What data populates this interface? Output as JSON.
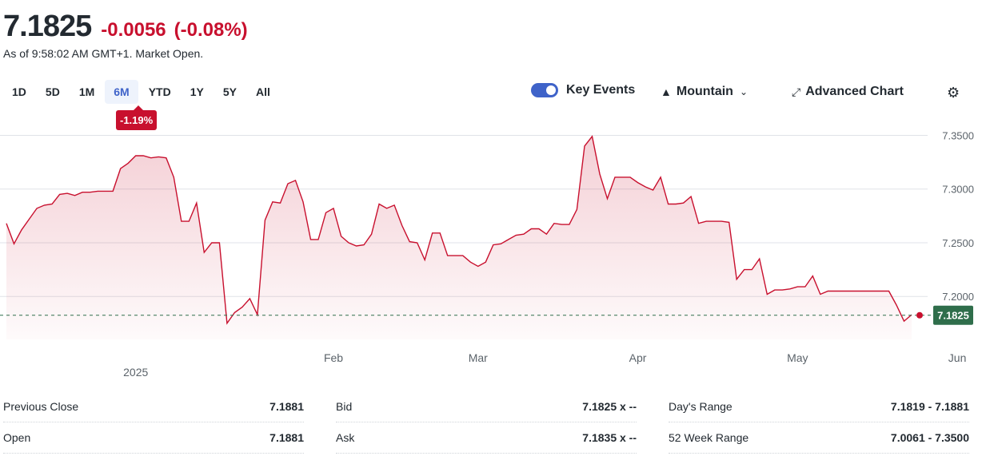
{
  "quote": {
    "price": "7.1825",
    "change": "-0.0056",
    "change_pct": "(-0.08%)",
    "as_of": "As of 9:58:02 AM GMT+1. Market Open."
  },
  "ranges": [
    "1D",
    "5D",
    "1M",
    "6M",
    "YTD",
    "1Y",
    "5Y",
    "All"
  ],
  "active_range": "6M",
  "range_change": "-1.19%",
  "tools": {
    "key_events": "Key Events",
    "chart_type": "Mountain",
    "advanced": "Advanced Chart"
  },
  "colors": {
    "line": "#c8102e",
    "accent": "#3f63c9",
    "price_tag": "#2f6e4b"
  },
  "chart_data": {
    "type": "area",
    "title": "",
    "xlabel": "",
    "ylabel": "",
    "ylim": [
      7.16,
      7.36
    ],
    "y_ticks": [
      "7.3500",
      "7.3000",
      "7.2500",
      "7.2000"
    ],
    "y_tick_values": [
      7.35,
      7.3,
      7.25,
      7.2
    ],
    "x_ticks": [
      {
        "label": "Feb",
        "index": 43
      },
      {
        "label": "Mar",
        "index": 62
      },
      {
        "label": "Apr",
        "index": 83
      },
      {
        "label": "May",
        "index": 104
      },
      {
        "label": "Jun",
        "index": 125
      }
    ],
    "year_label": {
      "label": "2025",
      "index": 17
    },
    "last_price": 7.1825,
    "last_price_label": "7.1825",
    "grid": true,
    "values": [
      7.268,
      7.249,
      7.262,
      7.272,
      7.282,
      7.285,
      7.286,
      7.295,
      7.296,
      7.294,
      7.297,
      7.297,
      7.298,
      7.298,
      7.298,
      7.319,
      7.324,
      7.331,
      7.331,
      7.329,
      7.33,
      7.329,
      7.311,
      7.27,
      7.27,
      7.287,
      7.241,
      7.25,
      7.25,
      7.175,
      7.185,
      7.19,
      7.198,
      7.183,
      7.271,
      7.288,
      7.287,
      7.305,
      7.308,
      7.288,
      7.253,
      7.253,
      7.278,
      7.282,
      7.256,
      7.25,
      7.247,
      7.248,
      7.258,
      7.286,
      7.282,
      7.285,
      7.266,
      7.251,
      7.25,
      7.234,
      7.259,
      7.259,
      7.238,
      7.238,
      7.238,
      7.232,
      7.228,
      7.232,
      7.248,
      7.249,
      7.253,
      7.257,
      7.258,
      7.263,
      7.263,
      7.258,
      7.268,
      7.267,
      7.267,
      7.281,
      7.34,
      7.349,
      7.314,
      7.291,
      7.311,
      7.311,
      7.311,
      7.306,
      7.302,
      7.299,
      7.311,
      7.286,
      7.286,
      7.287,
      7.293,
      7.268,
      7.27,
      7.27,
      7.27,
      7.269,
      7.216,
      7.225,
      7.225,
      7.235,
      7.202,
      7.206,
      7.206,
      7.207,
      7.209,
      7.209,
      7.219,
      7.202,
      7.205,
      7.205,
      7.205,
      7.205,
      7.205,
      7.205,
      7.205,
      7.205,
      7.205,
      7.192,
      7.177,
      7.183
    ]
  },
  "stats": {
    "col1": [
      {
        "label": "Previous Close",
        "value": "7.1881"
      },
      {
        "label": "Open",
        "value": "7.1881"
      }
    ],
    "col2": [
      {
        "label": "Bid",
        "value": "7.1825 x --"
      },
      {
        "label": "Ask",
        "value": "7.1835 x --"
      }
    ],
    "col3": [
      {
        "label": "Day's Range",
        "value": "7.1819 - 7.1881"
      },
      {
        "label": "52 Week Range",
        "value": "7.0061 - 7.3500"
      }
    ]
  }
}
